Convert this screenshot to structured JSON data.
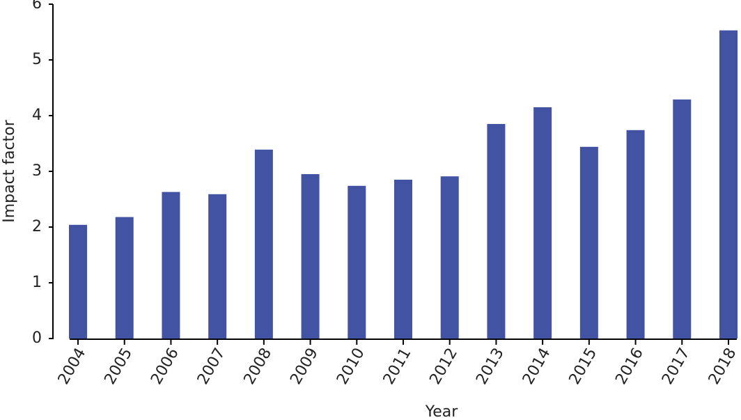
{
  "chart_data": {
    "type": "bar",
    "x_label": "Year",
    "y_label": "Impact factor",
    "categories": [
      "2004",
      "2005",
      "2006",
      "2007",
      "2008",
      "2009",
      "2010",
      "2011",
      "2012",
      "2013",
      "2014",
      "2015",
      "2016",
      "2017",
      "2018"
    ],
    "values": [
      2.04,
      2.18,
      2.63,
      2.59,
      3.39,
      2.95,
      2.74,
      2.85,
      2.91,
      3.85,
      4.15,
      3.44,
      3.74,
      4.29,
      5.53
    ],
    "color": "#4353a3",
    "ylim": [
      0,
      6
    ],
    "yticks": [
      0,
      1,
      2,
      3,
      4,
      5,
      6
    ],
    "grid": false
  }
}
